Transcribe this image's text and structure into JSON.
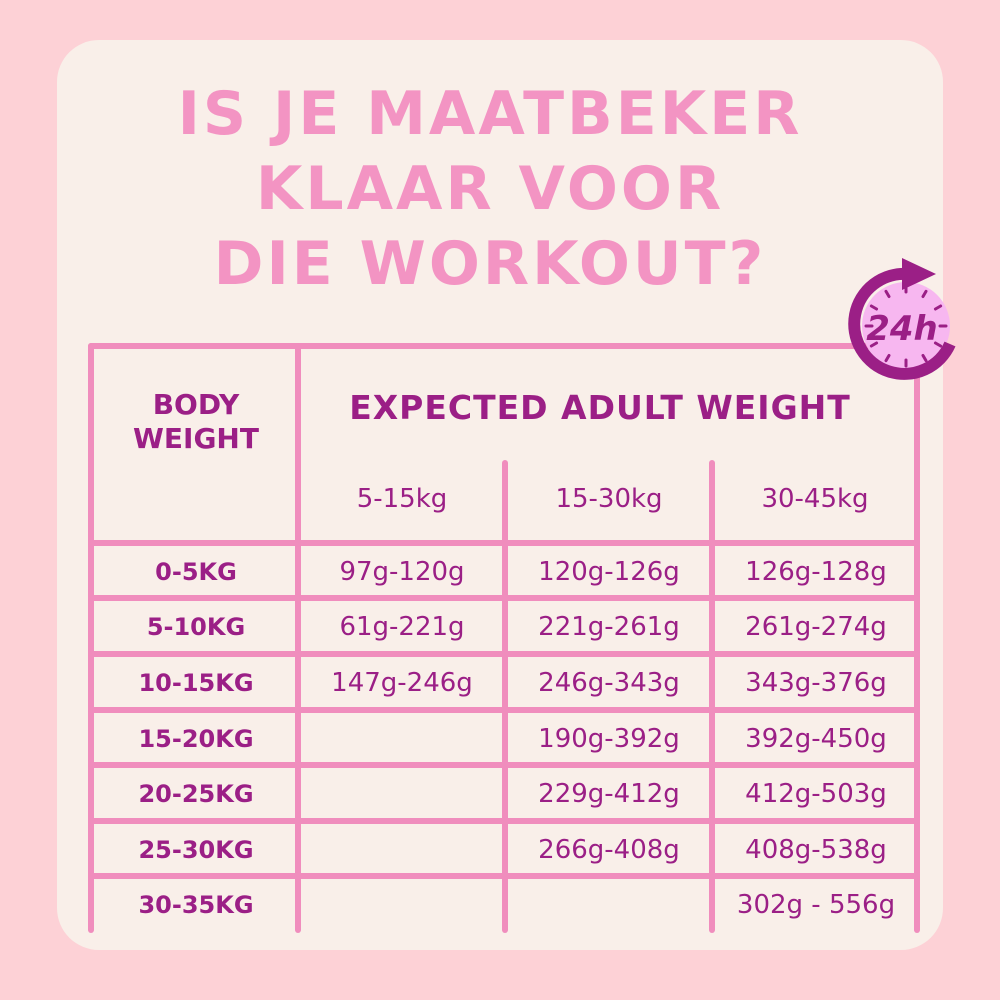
{
  "title_lines": [
    "IS JE MAATBEKER",
    "KLAAR VOOR",
    "DIE WORKOUT?"
  ],
  "badge": {
    "icon": "24h-clock-icon",
    "text": "24h"
  },
  "table": {
    "corner_header": [
      "BODY",
      "WEIGHT"
    ],
    "group_header": "EXPECTED ADULT WEIGHT",
    "columns": [
      "5-15kg",
      "15-30kg",
      "30-45kg"
    ],
    "rows": [
      {
        "label": "0-5KG",
        "values": [
          "97g-120g",
          "120g-126g",
          "126g-128g"
        ]
      },
      {
        "label": "5-10KG",
        "values": [
          "61g-221g",
          "221g-261g",
          "261g-274g"
        ]
      },
      {
        "label": "10-15KG",
        "values": [
          "147g-246g",
          "246g-343g",
          "343g-376g"
        ]
      },
      {
        "label": "15-20KG",
        "values": [
          "",
          "190g-392g",
          "392g-450g"
        ]
      },
      {
        "label": "20-25KG",
        "values": [
          "",
          "229g-412g",
          "412g-503g"
        ]
      },
      {
        "label": "25-30KG",
        "values": [
          "",
          "266g-408g",
          "408g-538g"
        ]
      },
      {
        "label": "30-35KG",
        "values": [
          "",
          "",
          "302g - 556g"
        ]
      }
    ]
  },
  "colors": {
    "background": "#fdd1d6",
    "card": "#f9efe9",
    "title": "#f394c3",
    "lines": "#f08dbd",
    "text": "#9b1f86",
    "clock_face": "#f7b7f0"
  }
}
